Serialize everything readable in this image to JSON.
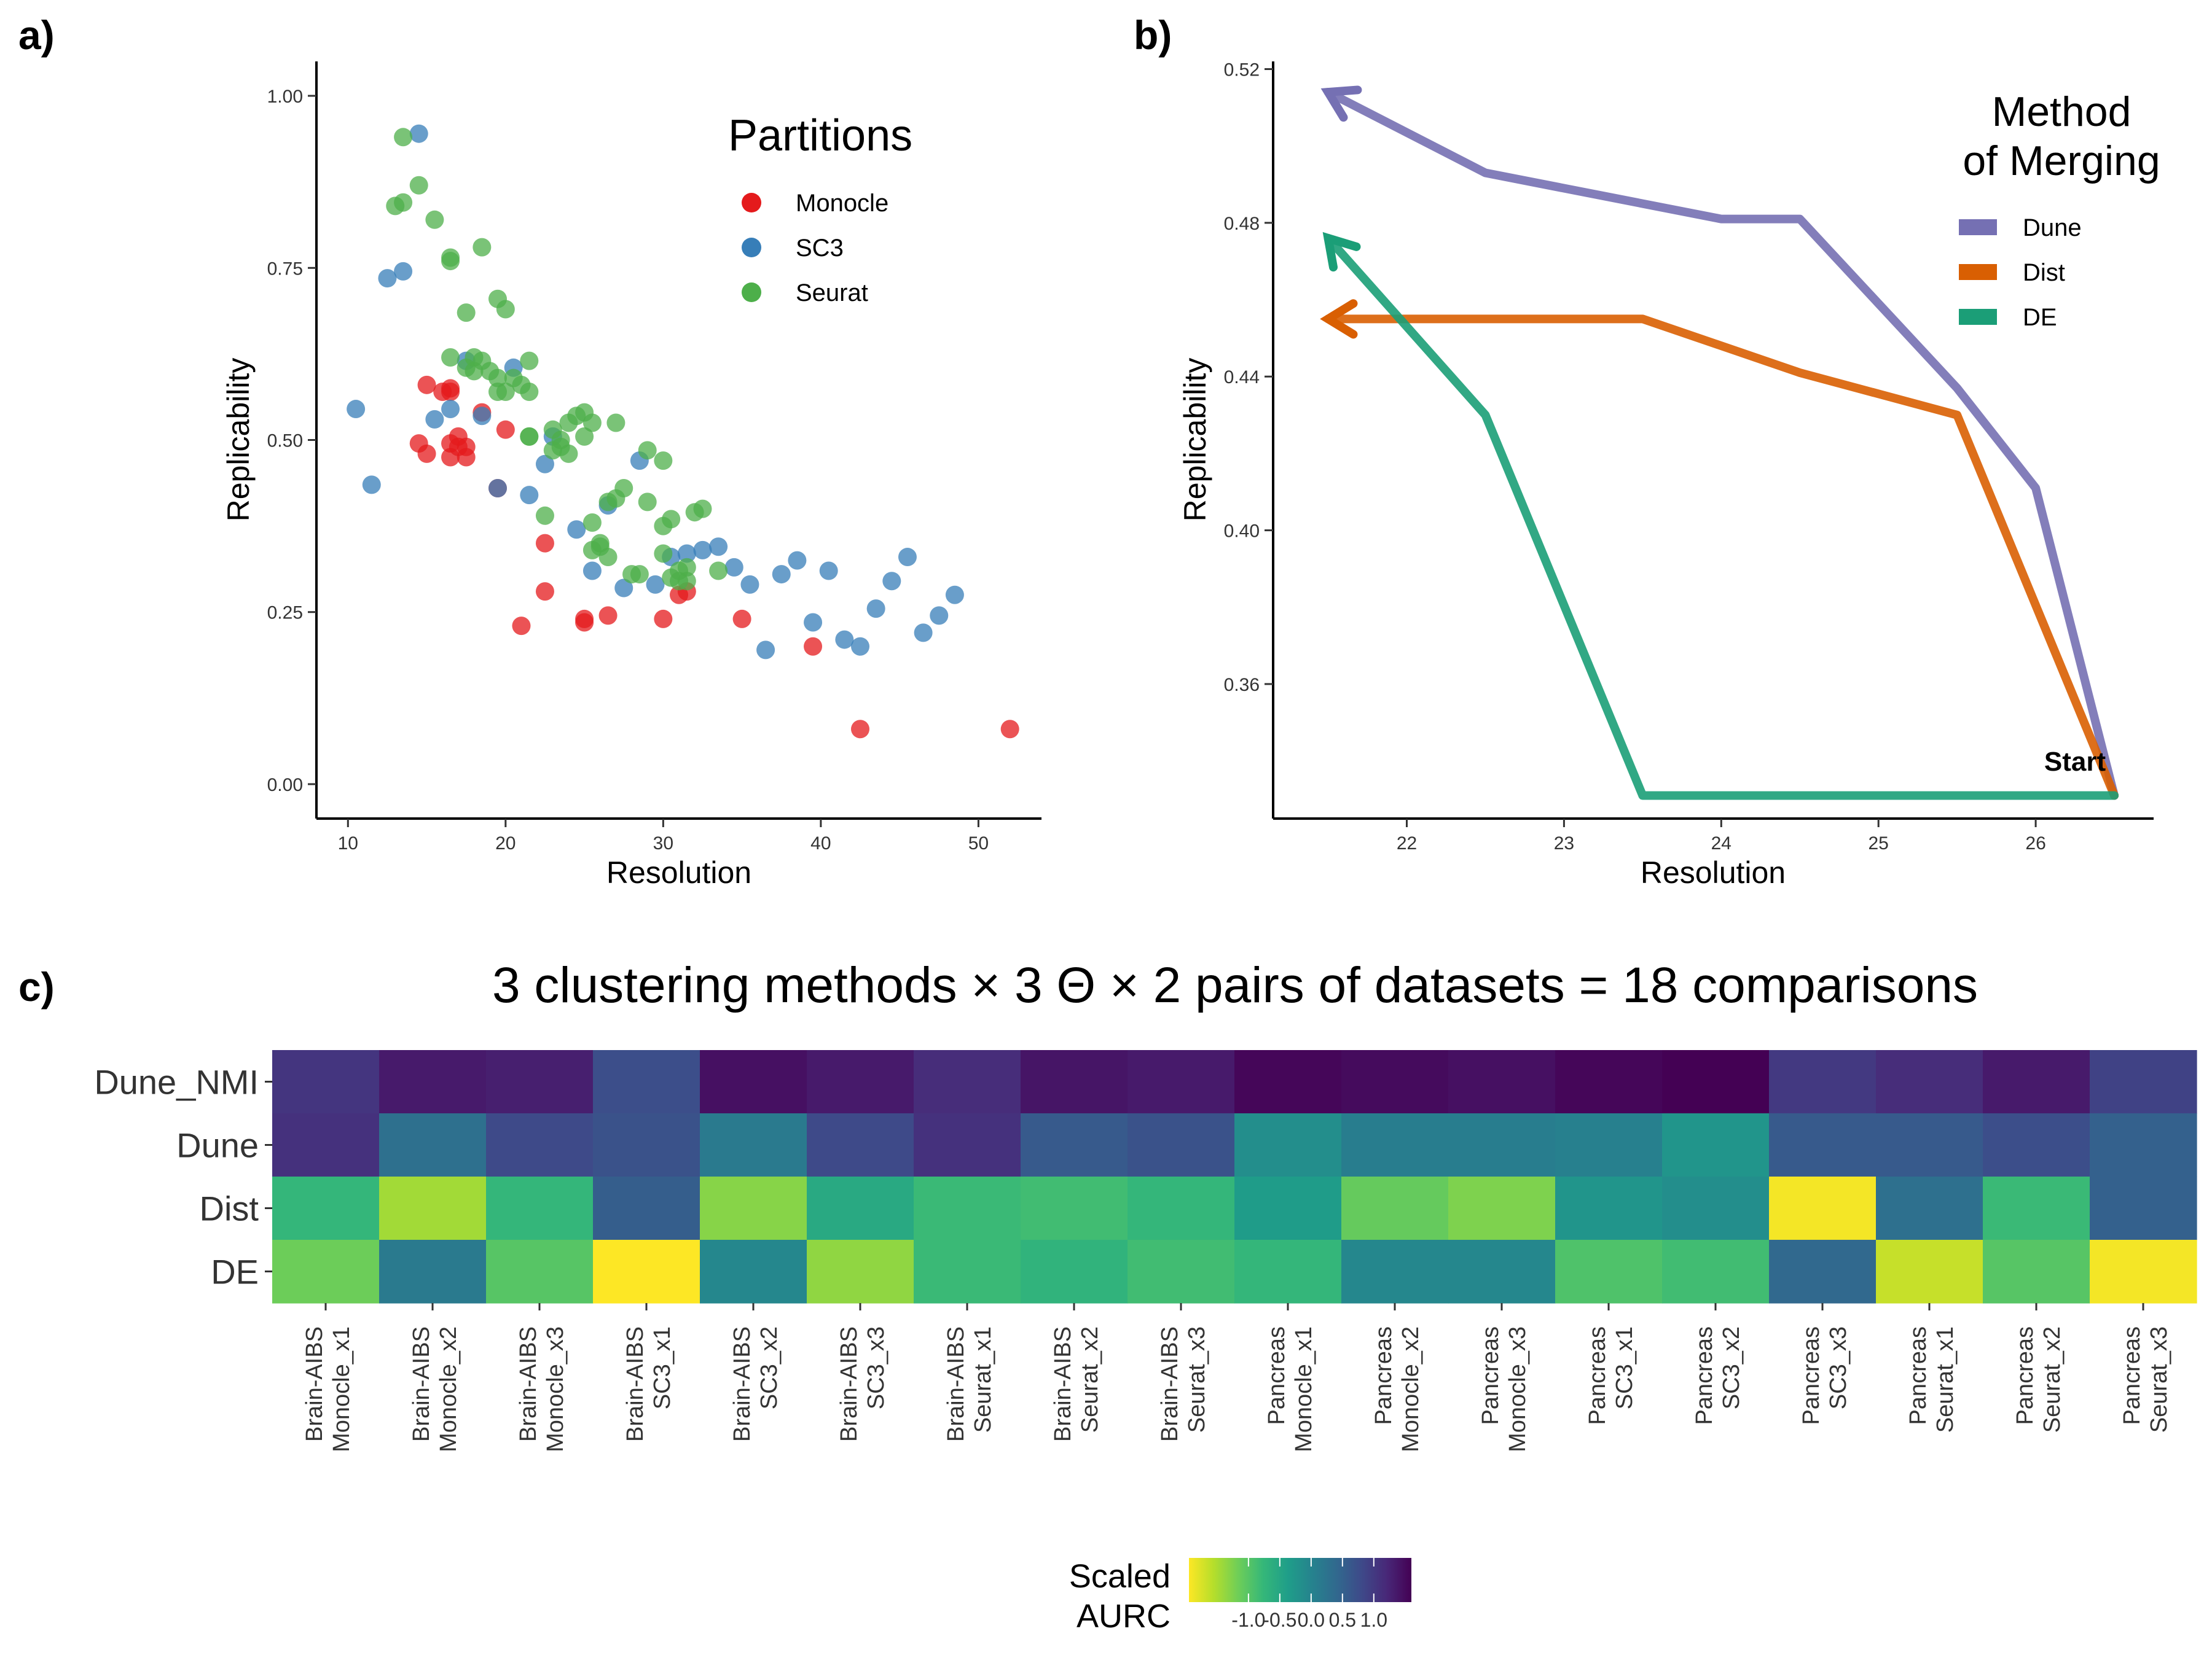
{
  "panels": {
    "a": "a)",
    "b": "b)",
    "c": "c)"
  },
  "chart_data": [
    {
      "type": "scatter",
      "panel": "a",
      "title": "",
      "xlabel": "Resolution",
      "ylabel": "Replicability",
      "xlim": [
        8,
        54
      ],
      "ylim": [
        -0.05,
        1.05
      ],
      "xticks": [
        10,
        20,
        30,
        40,
        50
      ],
      "yticks": [
        0,
        0.25,
        0.5,
        0.75,
        1
      ],
      "ytick_labels": [
        "0.00",
        "0.25",
        "0.50",
        "0.75",
        "1.00"
      ],
      "grid": false,
      "legend": {
        "title": "Partitions",
        "position": "top-right"
      },
      "series": [
        {
          "name": "Monocle",
          "color": "#e41a1c",
          "points": [
            [
              14.5,
              0.495
            ],
            [
              15,
              0.48
            ],
            [
              15,
              0.58
            ],
            [
              16,
              0.57
            ],
            [
              16.5,
              0.575
            ],
            [
              16.5,
              0.57
            ],
            [
              16.5,
              0.495
            ],
            [
              16.5,
              0.475
            ],
            [
              17,
              0.505
            ],
            [
              17,
              0.49
            ],
            [
              17.5,
              0.49
            ],
            [
              17.5,
              0.475
            ],
            [
              18.5,
              0.54
            ],
            [
              19.5,
              0.43
            ],
            [
              20,
              0.515
            ],
            [
              21,
              0.23
            ],
            [
              22.5,
              0.35
            ],
            [
              22.5,
              0.28
            ],
            [
              25,
              0.235
            ],
            [
              25,
              0.24
            ],
            [
              26.5,
              0.245
            ],
            [
              30,
              0.24
            ],
            [
              31,
              0.275
            ],
            [
              31.5,
              0.28
            ],
            [
              35,
              0.24
            ],
            [
              39.5,
              0.2
            ],
            [
              42.5,
              0.08
            ],
            [
              52,
              0.08
            ]
          ]
        },
        {
          "name": "SC3",
          "color": "#377eb8",
          "points": [
            [
              10.5,
              0.545
            ],
            [
              11.5,
              0.435
            ],
            [
              12.5,
              0.735
            ],
            [
              13.5,
              0.745
            ],
            [
              14.5,
              0.945
            ],
            [
              15.5,
              0.53
            ],
            [
              16.5,
              0.545
            ],
            [
              17.5,
              0.615
            ],
            [
              18.5,
              0.535
            ],
            [
              19.5,
              0.43
            ],
            [
              20.5,
              0.605
            ],
            [
              21.5,
              0.42
            ],
            [
              22.5,
              0.465
            ],
            [
              23,
              0.505
            ],
            [
              24.5,
              0.37
            ],
            [
              25.5,
              0.31
            ],
            [
              26.5,
              0.405
            ],
            [
              27.5,
              0.285
            ],
            [
              28.5,
              0.47
            ],
            [
              29.5,
              0.29
            ],
            [
              30.5,
              0.33
            ],
            [
              31.5,
              0.335
            ],
            [
              32.5,
              0.34
            ],
            [
              33.5,
              0.345
            ],
            [
              34.5,
              0.315
            ],
            [
              35.5,
              0.29
            ],
            [
              36.5,
              0.195
            ],
            [
              37.5,
              0.305
            ],
            [
              38.5,
              0.325
            ],
            [
              39.5,
              0.235
            ],
            [
              40.5,
              0.31
            ],
            [
              41.5,
              0.21
            ],
            [
              42.5,
              0.2
            ],
            [
              43.5,
              0.255
            ],
            [
              44.5,
              0.295
            ],
            [
              45.5,
              0.33
            ],
            [
              46.5,
              0.22
            ],
            [
              47.5,
              0.245
            ],
            [
              48.5,
              0.275
            ]
          ]
        },
        {
          "name": "Seurat",
          "color": "#4daf4a",
          "points": [
            [
              13,
              0.84
            ],
            [
              13.5,
              0.94
            ],
            [
              13.5,
              0.845
            ],
            [
              14.5,
              0.87
            ],
            [
              15.5,
              0.82
            ],
            [
              16.5,
              0.765
            ],
            [
              16.5,
              0.76
            ],
            [
              16.5,
              0.62
            ],
            [
              17.5,
              0.685
            ],
            [
              17.5,
              0.605
            ],
            [
              18,
              0.62
            ],
            [
              18,
              0.6
            ],
            [
              18.5,
              0.78
            ],
            [
              18.5,
              0.615
            ],
            [
              19,
              0.6
            ],
            [
              19.5,
              0.705
            ],
            [
              19.5,
              0.59
            ],
            [
              19.5,
              0.57
            ],
            [
              20,
              0.69
            ],
            [
              20,
              0.57
            ],
            [
              20.5,
              0.59
            ],
            [
              21,
              0.58
            ],
            [
              21.5,
              0.615
            ],
            [
              21.5,
              0.57
            ],
            [
              21.5,
              0.505
            ],
            [
              21.5,
              0.505
            ],
            [
              22.5,
              0.39
            ],
            [
              23,
              0.515
            ],
            [
              23,
              0.485
            ],
            [
              23.5,
              0.49
            ],
            [
              23.5,
              0.5
            ],
            [
              24,
              0.48
            ],
            [
              24,
              0.525
            ],
            [
              24.5,
              0.535
            ],
            [
              25,
              0.54
            ],
            [
              25,
              0.505
            ],
            [
              25.5,
              0.525
            ],
            [
              25.5,
              0.38
            ],
            [
              25.5,
              0.34
            ],
            [
              26,
              0.35
            ],
            [
              26,
              0.345
            ],
            [
              26.5,
              0.33
            ],
            [
              26.5,
              0.41
            ],
            [
              27,
              0.525
            ],
            [
              27,
              0.415
            ],
            [
              27.5,
              0.43
            ],
            [
              28,
              0.305
            ],
            [
              28.5,
              0.305
            ],
            [
              29,
              0.485
            ],
            [
              29,
              0.41
            ],
            [
              30,
              0.47
            ],
            [
              30,
              0.375
            ],
            [
              30,
              0.335
            ],
            [
              30.5,
              0.385
            ],
            [
              30.5,
              0.3
            ],
            [
              31,
              0.31
            ],
            [
              31,
              0.295
            ],
            [
              31.5,
              0.315
            ],
            [
              31.5,
              0.295
            ],
            [
              32,
              0.395
            ],
            [
              32.5,
              0.4
            ],
            [
              33.5,
              0.31
            ]
          ]
        }
      ]
    },
    {
      "type": "line",
      "panel": "b",
      "title": "",
      "xlabel": "Resolution",
      "ylabel": "Replicability",
      "xlim": [
        21.15,
        26.75
      ],
      "ylim": [
        0.325,
        0.522
      ],
      "xticks": [
        22,
        23,
        24,
        25,
        26
      ],
      "yticks": [
        0.36,
        0.4,
        0.44,
        0.48,
        0.52
      ],
      "ytick_labels": [
        "0.36",
        "0.40",
        "0.44",
        "0.48",
        "0.52"
      ],
      "grid": false,
      "legend": {
        "title": [
          "Method",
          "of Merging"
        ],
        "position": "top-right"
      },
      "annotations": [
        {
          "text": "Start",
          "x": 26.25,
          "y": 0.3375
        }
      ],
      "series": [
        {
          "name": "Dune",
          "color": "#7570b3",
          "x": [
            26.5,
            26,
            25.5,
            24.5,
            24,
            22.5,
            21.5
          ],
          "y": [
            0.331,
            0.411,
            0.437,
            0.481,
            0.481,
            0.493,
            0.514
          ]
        },
        {
          "name": "Dist",
          "color": "#d95f02",
          "x": [
            26.5,
            25.5,
            24.5,
            23.5,
            22.5,
            21.5
          ],
          "y": [
            0.331,
            0.43,
            0.441,
            0.455,
            0.455,
            0.455
          ]
        },
        {
          "name": "DE",
          "color": "#1b9e77",
          "x": [
            26.5,
            25.5,
            24.5,
            23.5,
            22.5,
            21.5
          ],
          "y": [
            0.331,
            0.331,
            0.331,
            0.331,
            0.43,
            0.476
          ]
        }
      ]
    },
    {
      "type": "heatmap",
      "panel": "c",
      "title": "3 clustering methods × 3 Θ  × 2 pairs of datasets = 18 comparisons",
      "rows": [
        "Dune_NMI",
        "Dune",
        "Dist",
        "DE"
      ],
      "columns": [
        [
          "Brain-AIBS",
          "Monocle_x1"
        ],
        [
          "Brain-AIBS",
          "Monocle_x2"
        ],
        [
          "Brain-AIBS",
          "Monocle_x3"
        ],
        [
          "Brain-AIBS",
          "SC3_x1"
        ],
        [
          "Brain-AIBS",
          "SC3_x2"
        ],
        [
          "Brain-AIBS",
          "SC3_x3"
        ],
        [
          "Brain-AIBS",
          "Seurat_x1"
        ],
        [
          "Brain-AIBS",
          "Seurat_x2"
        ],
        [
          "Brain-AIBS",
          "Seurat_x3"
        ],
        [
          "Pancreas",
          "Monocle_x1"
        ],
        [
          "Pancreas",
          "Monocle_x2"
        ],
        [
          "Pancreas",
          "Monocle_x3"
        ],
        [
          "Pancreas",
          "SC3_x1"
        ],
        [
          "Pancreas",
          "SC3_x2"
        ],
        [
          "Pancreas",
          "SC3_x3"
        ],
        [
          "Pancreas",
          "Seurat_x1"
        ],
        [
          "Pancreas",
          "Seurat_x2"
        ],
        [
          "Pancreas",
          "Seurat_x3"
        ]
      ],
      "values": [
        [
          1.05,
          1.35,
          1.3,
          0.75,
          1.45,
          1.35,
          1.15,
          1.4,
          1.35,
          1.55,
          1.5,
          1.45,
          1.55,
          1.6,
          1.0,
          1.15,
          1.35,
          0.9
        ],
        [
          1.1,
          0.3,
          0.8,
          0.7,
          0.15,
          0.8,
          1.1,
          0.6,
          0.7,
          -0.15,
          0.1,
          0.1,
          0.05,
          -0.25,
          0.6,
          0.6,
          0.75,
          0.5
        ],
        [
          -0.75,
          -1.45,
          -0.75,
          0.55,
          -1.3,
          -0.55,
          -0.8,
          -0.85,
          -0.75,
          -0.35,
          -1.1,
          -1.25,
          -0.25,
          -0.15,
          -1.9,
          0.3,
          -0.8,
          0.5
        ],
        [
          -1.15,
          0.15,
          -1.0,
          -1.95,
          -0.05,
          -1.35,
          -0.8,
          -0.7,
          -0.85,
          -0.75,
          -0.05,
          -0.05,
          -0.95,
          -0.85,
          0.4,
          -1.65,
          -1.0,
          -1.9
        ]
      ],
      "legend": {
        "title": [
          "Scaled",
          "AURC"
        ],
        "ticks": [
          -1.0,
          -0.5,
          0.0,
          0.5,
          1.0
        ],
        "tick_labels": [
          "-1.0",
          "-0.5",
          "0.0",
          "0.5",
          "1.0"
        ],
        "range": [
          -1.95,
          1.6
        ],
        "position": "bottom",
        "palette": "viridis-reversed"
      }
    }
  ]
}
